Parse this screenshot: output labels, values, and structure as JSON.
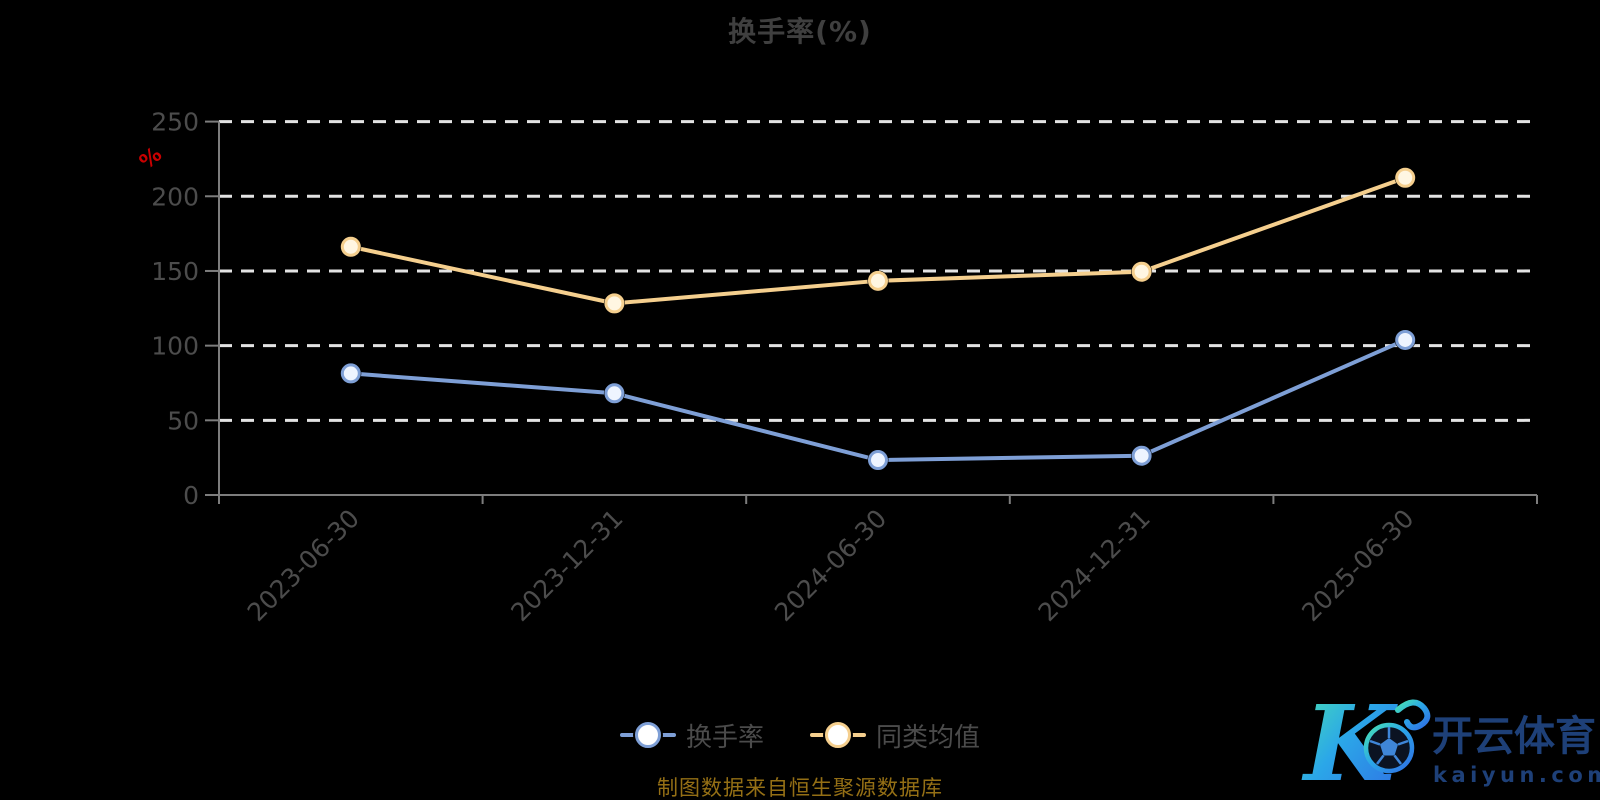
{
  "title": "换手率(%)",
  "y_axis": {
    "unit": "%",
    "tick_labels": [
      "0",
      "50",
      "100",
      "150",
      "200",
      "250"
    ]
  },
  "chart_data": {
    "type": "line",
    "title": "换手率(%)",
    "categories": [
      "2023-06-30",
      "2023-12-31",
      "2024-06-30",
      "2024-12-31",
      "2025-06-30"
    ],
    "series": [
      {
        "name": "换手率",
        "color": "#7E9FD6",
        "marker_fill": "#EEF4FF",
        "values": [
          81.4,
          68.1,
          23.4,
          26.3,
          103.8
        ]
      },
      {
        "name": "同类均值",
        "color": "#F5CF8E",
        "marker_fill": "#FFF6E2",
        "values": [
          166.2,
          128.3,
          143.4,
          149.5,
          212.4
        ]
      }
    ],
    "xlabel": "",
    "ylabel": "%",
    "ylim": [
      0,
      250
    ],
    "yticks": [
      0,
      50,
      100,
      150,
      200,
      250
    ],
    "grid": "horizontal-dashed",
    "legend_position": "bottom-center"
  },
  "legend": {
    "items": [
      {
        "label": "换手率",
        "color": "#7E9FD6"
      },
      {
        "label": "同类均值",
        "color": "#F5CF8E"
      }
    ]
  },
  "footer": {
    "source_text": "制图数据来自恒生聚源数据库"
  },
  "watermark": {
    "brand_cn": "开云体育",
    "brand_domain": "kaiyun.com"
  },
  "colors": {
    "background": "#000000",
    "title": "#3F3F3F",
    "axis_label": "#4C4C4C",
    "axis_line": "#7D7D7D",
    "gridline": "#E3E3E3",
    "unit_label": "#C90000",
    "legend_text": "#4B4B4B",
    "source_text": "#946F15",
    "watermark_text": "#1E4078"
  }
}
